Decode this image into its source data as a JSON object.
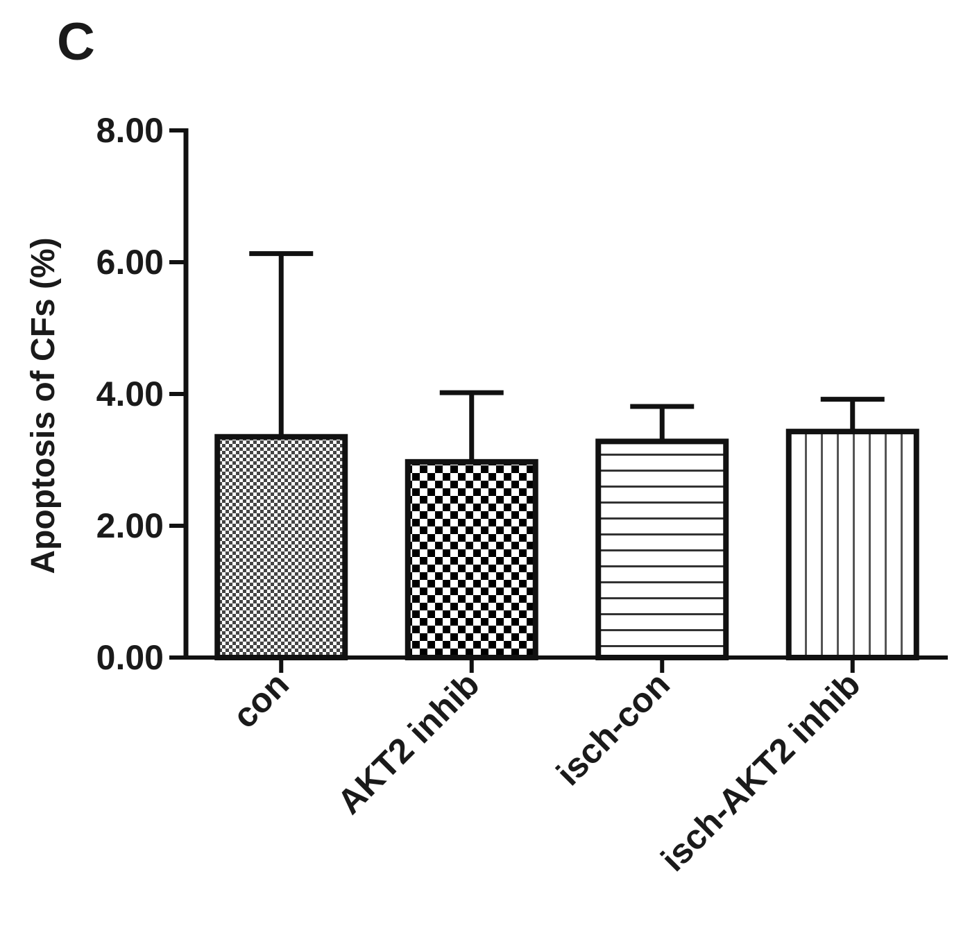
{
  "chart_data": {
    "type": "bar",
    "panel_label": "C",
    "y_label": "Apoptosis of CFs (%)",
    "categories": [
      "con",
      "AKT2 inhib",
      "isch-con",
      "isch-AKT2 inhib"
    ],
    "values": [
      3.35,
      2.97,
      3.28,
      3.43
    ],
    "errors": [
      2.78,
      1.05,
      0.53,
      0.49
    ],
    "ylim": [
      0,
      8
    ],
    "yticks": [
      {
        "value": 0,
        "label": "0.00"
      },
      {
        "value": 2,
        "label": "2.00"
      },
      {
        "value": 4,
        "label": "4.00"
      },
      {
        "value": 6,
        "label": "6.00"
      },
      {
        "value": 8,
        "label": "8.00"
      }
    ],
    "grid": false
  }
}
